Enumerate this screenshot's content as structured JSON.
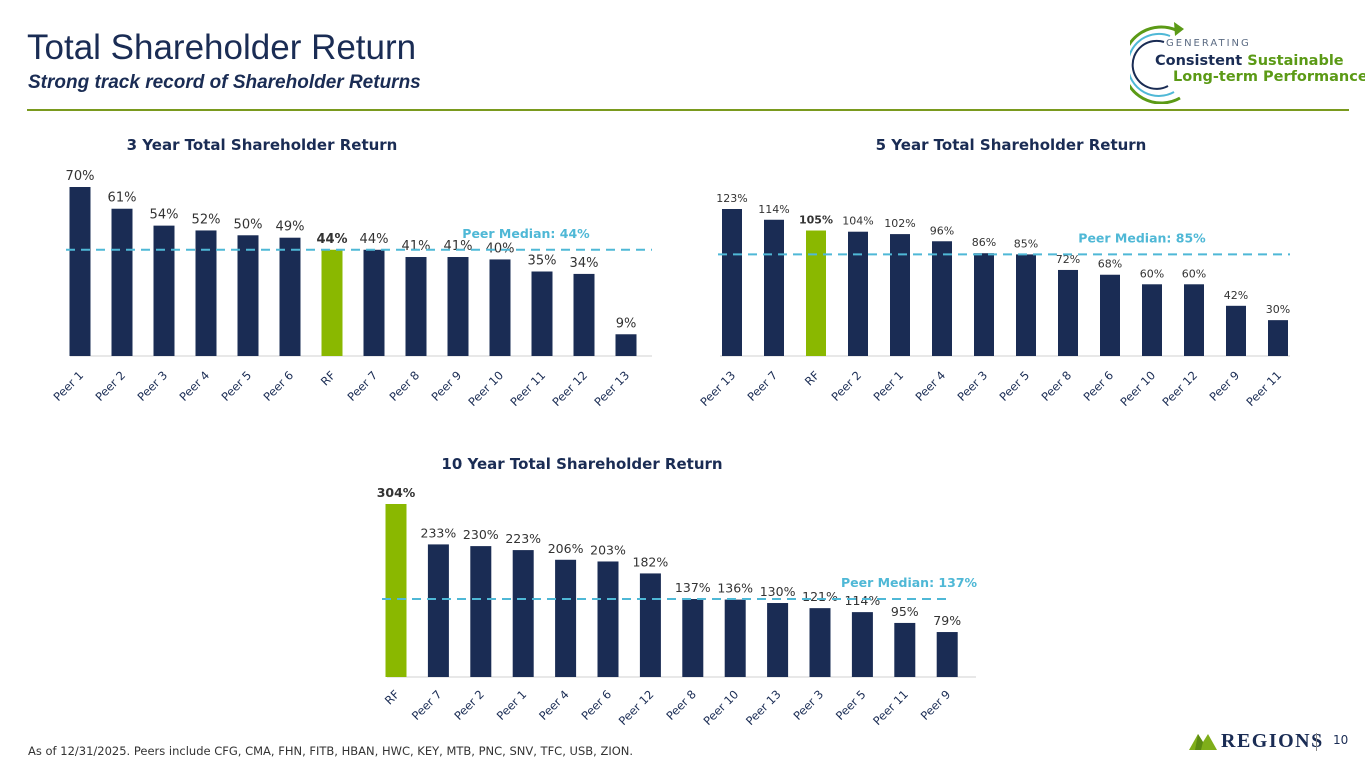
{
  "header": {
    "title": "Total Shareholder Return",
    "subtitle": "Strong track record of Shareholder Returns"
  },
  "badge": {
    "top": "GENERATING",
    "line1a": "Consistent",
    "line1b": "Sustainable",
    "line2": "Long-term Performance"
  },
  "colors": {
    "bar": "#1a2c54",
    "highlight": "#8ab800",
    "median": "#4fb8d6",
    "title": "#1a2c54",
    "accent_rule": "#7a9a1e"
  },
  "chart_data": [
    {
      "type": "bar",
      "title": "3 Year Total Shareholder Return",
      "categories": [
        "Peer 1",
        "Peer 2",
        "Peer 3",
        "Peer 4",
        "Peer 5",
        "Peer 6",
        "RF",
        "Peer 7",
        "Peer 8",
        "Peer 9",
        "Peer 10",
        "Peer 11",
        "Peer 12",
        "Peer 13"
      ],
      "values": [
        70,
        61,
        54,
        52,
        50,
        49,
        44,
        44,
        41,
        41,
        40,
        35,
        34,
        9
      ],
      "labels": [
        "70%",
        "61%",
        "54%",
        "52%",
        "50%",
        "49%",
        "44%",
        "44%",
        "41%",
        "41%",
        "40%",
        "35%",
        "34%",
        "9%"
      ],
      "highlight": "RF",
      "median": 44,
      "median_label": "Peer Median: 44%",
      "ylim": [
        0,
        70
      ]
    },
    {
      "type": "bar",
      "title": "5 Year Total Shareholder Return",
      "categories": [
        "Peer 13",
        "Peer 7",
        "RF",
        "Peer 2",
        "Peer 1",
        "Peer 4",
        "Peer 3",
        "Peer 5",
        "Peer 8",
        "Peer 6",
        "Peer 10",
        "Peer 12",
        "Peer 9",
        "Peer 11"
      ],
      "values": [
        123,
        114,
        105,
        104,
        102,
        96,
        86,
        85,
        72,
        68,
        60,
        60,
        42,
        30
      ],
      "labels": [
        "123%",
        "114%",
        "105%",
        "104%",
        "102%",
        "96%",
        "86%",
        "85%",
        "72%",
        "68%",
        "60%",
        "60%",
        "42%",
        "30%"
      ],
      "highlight": "RF",
      "median": 85,
      "median_label": "Peer Median: 85%",
      "ylim": [
        0,
        123
      ]
    },
    {
      "type": "bar",
      "title": "10 Year Total Shareholder Return",
      "categories": [
        "RF",
        "Peer 7",
        "Peer 2",
        "Peer 1",
        "Peer 4",
        "Peer 6",
        "Peer 12",
        "Peer 8",
        "Peer 10",
        "Peer 13",
        "Peer 3",
        "Peer 5",
        "Peer 11",
        "Peer 9"
      ],
      "values": [
        304,
        233,
        230,
        223,
        206,
        203,
        182,
        137,
        136,
        130,
        121,
        114,
        95,
        79
      ],
      "labels": [
        "304%",
        "233%",
        "230%",
        "223%",
        "206%",
        "203%",
        "182%",
        "137%",
        "136%",
        "130%",
        "121%",
        "114%",
        "95%",
        "79%"
      ],
      "highlight": "RF",
      "median": 137,
      "median_label": "Peer Median: 137%",
      "ylim": [
        0,
        304
      ]
    }
  ],
  "footer": {
    "note": "As of 12/31/2025. Peers include CFG, CMA, FHN, FITB, HBAN, HWC, KEY, MTB, PNC, SNV, TFC, USB, ZION.",
    "brand": "REGIONS",
    "page": "10"
  }
}
